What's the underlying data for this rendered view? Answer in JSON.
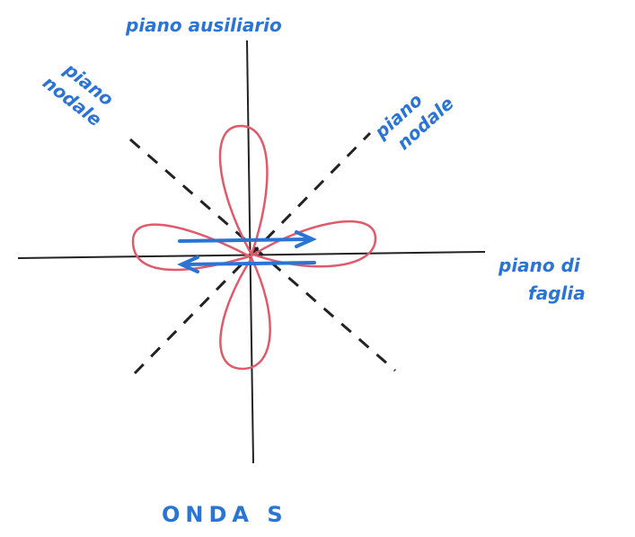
{
  "labels": {
    "auxiliary_plane": "piano ausiliario",
    "nodal_plane_left": [
      "piano",
      "nodale"
    ],
    "nodal_plane_right": [
      "piano",
      "nodale"
    ],
    "fault_plane": [
      "piano di",
      "faglia"
    ],
    "caption": "ONDA S"
  }
}
